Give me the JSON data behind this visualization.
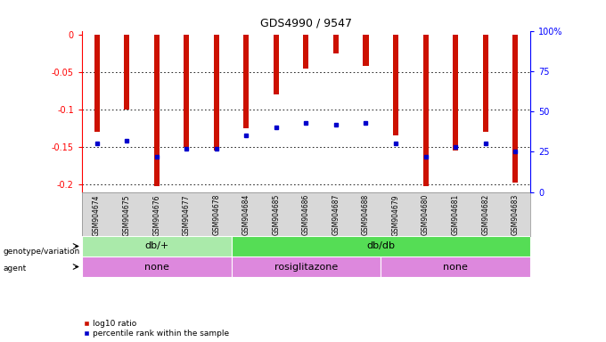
{
  "title": "GDS4990 / 9547",
  "samples": [
    "GSM904674",
    "GSM904675",
    "GSM904676",
    "GSM904677",
    "GSM904678",
    "GSM904684",
    "GSM904685",
    "GSM904686",
    "GSM904687",
    "GSM904688",
    "GSM904679",
    "GSM904680",
    "GSM904681",
    "GSM904682",
    "GSM904683"
  ],
  "log10_ratio": [
    -0.13,
    -0.1,
    -0.202,
    -0.15,
    -0.155,
    -0.125,
    -0.08,
    -0.045,
    -0.025,
    -0.042,
    -0.135,
    -0.202,
    -0.155,
    -0.13,
    -0.197
  ],
  "percentile": [
    30,
    32,
    22,
    27,
    27,
    35,
    40,
    43,
    42,
    43,
    30,
    22,
    28,
    30,
    25
  ],
  "genotype_groups": [
    {
      "label": "db/+",
      "start": 0,
      "end": 5,
      "color": "#aaeaaa"
    },
    {
      "label": "db/db",
      "start": 5,
      "end": 15,
      "color": "#44cc44"
    }
  ],
  "agent_groups": [
    {
      "label": "none",
      "start": 0,
      "end": 5
    },
    {
      "label": "rosiglitazone",
      "start": 5,
      "end": 10
    },
    {
      "label": "none",
      "start": 10,
      "end": 15
    }
  ],
  "ylim_left": [
    -0.21,
    0.005
  ],
  "ylim_right": [
    0,
    100
  ],
  "bar_color": "#cc1100",
  "dot_color": "#0000cc",
  "agent_color": "#dd88dd",
  "bg_color": "#ffffff",
  "tick_bg_color": "#d8d8d8"
}
